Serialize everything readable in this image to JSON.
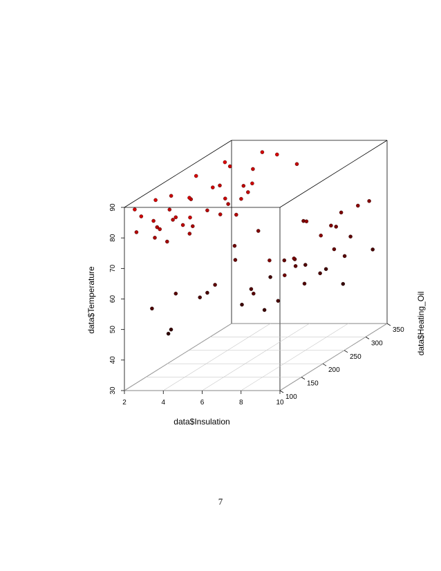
{
  "chart_data": {
    "type": "scatter",
    "projection": "3d",
    "title": "",
    "xlabel": "data$Insulation",
    "ylabel": "data$Heating_Oil",
    "zlabel": "data$Temperature",
    "xlim": [
      2,
      10
    ],
    "ylim": [
      100,
      350
    ],
    "zlim": [
      30,
      90
    ],
    "x_ticks": [
      "2",
      "4",
      "6",
      "8",
      "10"
    ],
    "y_ticks": [
      "100",
      "150",
      "200",
      "250",
      "300",
      "350"
    ],
    "z_ticks": [
      "30",
      "40",
      "50",
      "60",
      "70",
      "80",
      "90"
    ],
    "grid": "floor",
    "color_gradient": {
      "low": "#000000",
      "high": "#e00000"
    },
    "points": [
      [
        2.2,
        115,
        88
      ],
      [
        2.6,
        112,
        86
      ],
      [
        3.1,
        118,
        84
      ],
      [
        3.6,
        110,
        82
      ],
      [
        4.2,
        120,
        85
      ],
      [
        4.7,
        114,
        83
      ],
      [
        5.2,
        108,
        86
      ],
      [
        2.4,
        110,
        81
      ],
      [
        3.3,
        112,
        79
      ],
      [
        4.0,
        109,
        78
      ],
      [
        5.0,
        116,
        80
      ],
      [
        2.5,
        150,
        88
      ],
      [
        3.0,
        160,
        84
      ],
      [
        3.8,
        170,
        87
      ],
      [
        4.5,
        180,
        82
      ],
      [
        5.2,
        190,
        85
      ],
      [
        5.8,
        200,
        84
      ],
      [
        2.8,
        140,
        80
      ],
      [
        3.5,
        145,
        82
      ],
      [
        4.3,
        155,
        79
      ],
      [
        5.5,
        165,
        82
      ],
      [
        6.1,
        175,
        81
      ],
      [
        2.2,
        200,
        85
      ],
      [
        3.0,
        210,
        83
      ],
      [
        3.9,
        220,
        86
      ],
      [
        4.8,
        215,
        81
      ],
      [
        5.6,
        225,
        84
      ],
      [
        2.6,
        240,
        88
      ],
      [
        3.6,
        250,
        84
      ],
      [
        4.6,
        260,
        83
      ],
      [
        5.6,
        235,
        86
      ],
      [
        3.2,
        280,
        89
      ],
      [
        4.2,
        300,
        85
      ],
      [
        5.0,
        320,
        88
      ],
      [
        5.8,
        330,
        84
      ],
      [
        2.8,
        310,
        85
      ],
      [
        3.8,
        340,
        87
      ],
      [
        4.2,
        120,
        60
      ],
      [
        5.0,
        140,
        57
      ],
      [
        6.0,
        130,
        62
      ],
      [
        4.5,
        180,
        55
      ],
      [
        5.5,
        200,
        64
      ],
      [
        6.5,
        170,
        52
      ],
      [
        3.2,
        110,
        56
      ],
      [
        7.2,
        160,
        58
      ],
      [
        4.8,
        230,
        66
      ],
      [
        6.2,
        250,
        54
      ],
      [
        3.6,
        130,
        46
      ],
      [
        4.4,
        100,
        50
      ],
      [
        5.8,
        240,
        70
      ],
      [
        6.8,
        300,
        68
      ],
      [
        8.2,
        120,
        60
      ],
      [
        8.8,
        150,
        55
      ],
      [
        9.5,
        180,
        58
      ],
      [
        8.6,
        200,
        62
      ],
      [
        9.2,
        230,
        57
      ],
      [
        9.8,
        260,
        60
      ],
      [
        8.4,
        280,
        54
      ],
      [
        9.0,
        310,
        62
      ],
      [
        9.7,
        330,
        56
      ],
      [
        8.0,
        250,
        58
      ],
      [
        8.8,
        130,
        70
      ],
      [
        9.4,
        160,
        68
      ],
      [
        9.9,
        200,
        72
      ],
      [
        8.5,
        230,
        74
      ],
      [
        9.1,
        260,
        70
      ],
      [
        9.6,
        300,
        73
      ],
      [
        8.3,
        320,
        69
      ],
      [
        9.0,
        180,
        66
      ],
      [
        9.7,
        240,
        64
      ],
      [
        8.7,
        290,
        67
      ],
      [
        9.3,
        340,
        71
      ],
      [
        8.1,
        150,
        52
      ],
      [
        9.5,
        270,
        50
      ],
      [
        7.8,
        210,
        63
      ],
      [
        9.8,
        120,
        66
      ]
    ]
  },
  "page": {
    "number": "7"
  }
}
